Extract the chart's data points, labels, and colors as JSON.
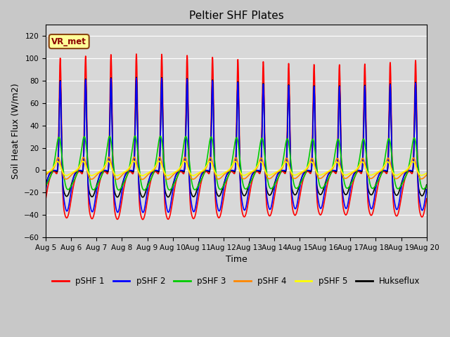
{
  "title": "Peltier SHF Plates",
  "xlabel": "Time",
  "ylabel": "Soil Heat Flux (W/m2)",
  "ylim": [
    -60,
    130
  ],
  "yticks": [
    -60,
    -40,
    -20,
    0,
    20,
    40,
    60,
    80,
    100,
    120
  ],
  "date_labels": [
    "Aug 5",
    "Aug 6",
    "Aug 7",
    "Aug 8",
    "Aug 9",
    "Aug 10",
    "Aug 11",
    "Aug 12",
    "Aug 13",
    "Aug 14",
    "Aug 15",
    "Aug 16",
    "Aug 17",
    "Aug 18",
    "Aug 19",
    "Aug 20"
  ],
  "annotation_text": "VR_met",
  "annotation_color": "#8B0000",
  "annotation_bg": "#FFFF99",
  "annotation_edge": "#8B4513",
  "bg_color": "#D8D8D8",
  "plot_bg": "#D8D8D8",
  "series_colors": {
    "pSHF 1": "#FF0000",
    "pSHF 2": "#0000FF",
    "pSHF 3": "#00CC00",
    "pSHF 4": "#FF8800",
    "pSHF 5": "#FFFF00",
    "Hukseflux": "#000000"
  },
  "n_days": 15,
  "points_per_day": 288,
  "amplitudes": {
    "pSHF1_peak": 115,
    "pSHF1_trough": -42,
    "pSHF2_peak": 85,
    "pSHF2_trough": -36,
    "pSHF3_peak": 38,
    "pSHF3_trough": -18,
    "pSHF4_peak": 14,
    "pSHF4_trough": -8,
    "pSHF5_peak": 10,
    "pSHF5_trough": -5,
    "Hukse_peak": 87,
    "Hukse_trough": -23
  },
  "grid_color": "#FFFFFF",
  "figsize": [
    6.4,
    4.8
  ],
  "dpi": 100
}
